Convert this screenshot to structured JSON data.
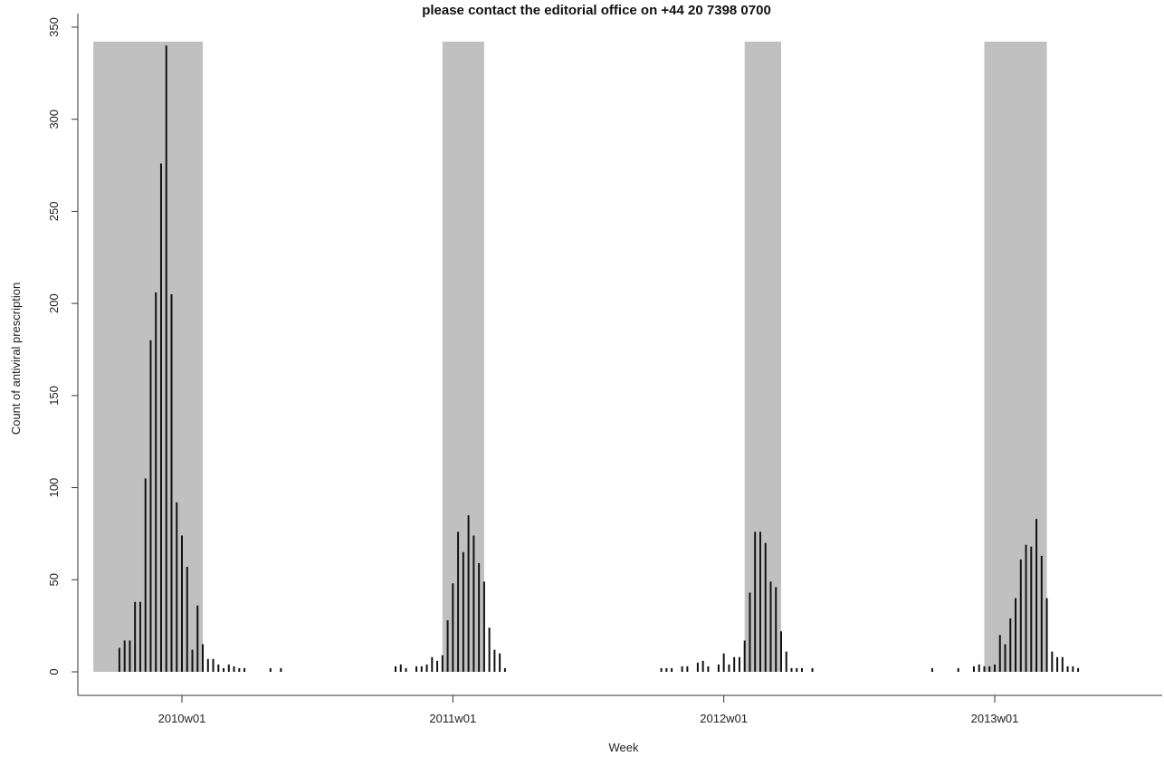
{
  "page": {
    "banner_text": "please contact the editorial office on +44 20 7398 0700"
  },
  "chart_data": {
    "type": "bar",
    "title": "",
    "xlabel": "Week",
    "ylabel": "Count of antiviral prescription",
    "ylim": [
      0,
      350
    ],
    "y_ticks": [
      0,
      50,
      100,
      150,
      200,
      250,
      300,
      350
    ],
    "x_tick_labels": [
      {
        "label": "2010w01",
        "week_index": 0
      },
      {
        "label": "2011w01",
        "week_index": 52
      },
      {
        "label": "2012w01",
        "week_index": 104
      },
      {
        "label": "2013w01",
        "week_index": 156
      }
    ],
    "shaded_periods": [
      {
        "start_week": -17,
        "end_week": 4
      },
      {
        "start_week": 50,
        "end_week": 58
      },
      {
        "start_week": 108,
        "end_week": 115
      },
      {
        "start_week": 154,
        "end_week": 166
      }
    ],
    "shading_color": "#c0c0c0",
    "bar_color": "#111111",
    "grid": false,
    "weeks": [
      {
        "w": -12,
        "v": 13
      },
      {
        "w": -11,
        "v": 17
      },
      {
        "w": -10,
        "v": 17
      },
      {
        "w": -9,
        "v": 38
      },
      {
        "w": -8,
        "v": 38
      },
      {
        "w": -7,
        "v": 105
      },
      {
        "w": -6,
        "v": 180
      },
      {
        "w": -5,
        "v": 206
      },
      {
        "w": -4,
        "v": 276
      },
      {
        "w": -3,
        "v": 340
      },
      {
        "w": -2,
        "v": 205
      },
      {
        "w": -1,
        "v": 92
      },
      {
        "w": 0,
        "v": 74
      },
      {
        "w": 1,
        "v": 57
      },
      {
        "w": 2,
        "v": 12
      },
      {
        "w": 3,
        "v": 36
      },
      {
        "w": 4,
        "v": 15
      },
      {
        "w": 5,
        "v": 7
      },
      {
        "w": 6,
        "v": 7
      },
      {
        "w": 7,
        "v": 4
      },
      {
        "w": 8,
        "v": 2
      },
      {
        "w": 9,
        "v": 4
      },
      {
        "w": 10,
        "v": 3
      },
      {
        "w": 11,
        "v": 2
      },
      {
        "w": 12,
        "v": 2
      },
      {
        "w": 17,
        "v": 2
      },
      {
        "w": 19,
        "v": 2
      },
      {
        "w": 41,
        "v": 3
      },
      {
        "w": 42,
        "v": 4
      },
      {
        "w": 43,
        "v": 2
      },
      {
        "w": 45,
        "v": 3
      },
      {
        "w": 46,
        "v": 3
      },
      {
        "w": 47,
        "v": 4
      },
      {
        "w": 48,
        "v": 8
      },
      {
        "w": 49,
        "v": 6
      },
      {
        "w": 50,
        "v": 9
      },
      {
        "w": 51,
        "v": 28
      },
      {
        "w": 52,
        "v": 48
      },
      {
        "w": 53,
        "v": 76
      },
      {
        "w": 54,
        "v": 65
      },
      {
        "w": 55,
        "v": 85
      },
      {
        "w": 56,
        "v": 74
      },
      {
        "w": 57,
        "v": 59
      },
      {
        "w": 58,
        "v": 49
      },
      {
        "w": 59,
        "v": 24
      },
      {
        "w": 60,
        "v": 12
      },
      {
        "w": 61,
        "v": 10
      },
      {
        "w": 62,
        "v": 2
      },
      {
        "w": 92,
        "v": 2
      },
      {
        "w": 93,
        "v": 2
      },
      {
        "w": 94,
        "v": 2
      },
      {
        "w": 96,
        "v": 3
      },
      {
        "w": 97,
        "v": 3
      },
      {
        "w": 99,
        "v": 5
      },
      {
        "w": 100,
        "v": 6
      },
      {
        "w": 101,
        "v": 3
      },
      {
        "w": 103,
        "v": 4
      },
      {
        "w": 104,
        "v": 10
      },
      {
        "w": 105,
        "v": 4
      },
      {
        "w": 106,
        "v": 8
      },
      {
        "w": 107,
        "v": 8
      },
      {
        "w": 108,
        "v": 17
      },
      {
        "w": 109,
        "v": 43
      },
      {
        "w": 110,
        "v": 76
      },
      {
        "w": 111,
        "v": 76
      },
      {
        "w": 112,
        "v": 70
      },
      {
        "w": 113,
        "v": 49
      },
      {
        "w": 114,
        "v": 46
      },
      {
        "w": 115,
        "v": 22
      },
      {
        "w": 116,
        "v": 11
      },
      {
        "w": 117,
        "v": 2
      },
      {
        "w": 118,
        "v": 2
      },
      {
        "w": 119,
        "v": 2
      },
      {
        "w": 121,
        "v": 2
      },
      {
        "w": 144,
        "v": 2
      },
      {
        "w": 149,
        "v": 2
      },
      {
        "w": 152,
        "v": 3
      },
      {
        "w": 153,
        "v": 4
      },
      {
        "w": 154,
        "v": 3
      },
      {
        "w": 155,
        "v": 3
      },
      {
        "w": 156,
        "v": 4
      },
      {
        "w": 157,
        "v": 20
      },
      {
        "w": 158,
        "v": 15
      },
      {
        "w": 159,
        "v": 29
      },
      {
        "w": 160,
        "v": 40
      },
      {
        "w": 161,
        "v": 61
      },
      {
        "w": 162,
        "v": 69
      },
      {
        "w": 163,
        "v": 68
      },
      {
        "w": 164,
        "v": 83
      },
      {
        "w": 165,
        "v": 63
      },
      {
        "w": 166,
        "v": 40
      },
      {
        "w": 167,
        "v": 11
      },
      {
        "w": 168,
        "v": 8
      },
      {
        "w": 169,
        "v": 8
      },
      {
        "w": 170,
        "v": 3
      },
      {
        "w": 171,
        "v": 3
      },
      {
        "w": 172,
        "v": 2
      }
    ]
  }
}
